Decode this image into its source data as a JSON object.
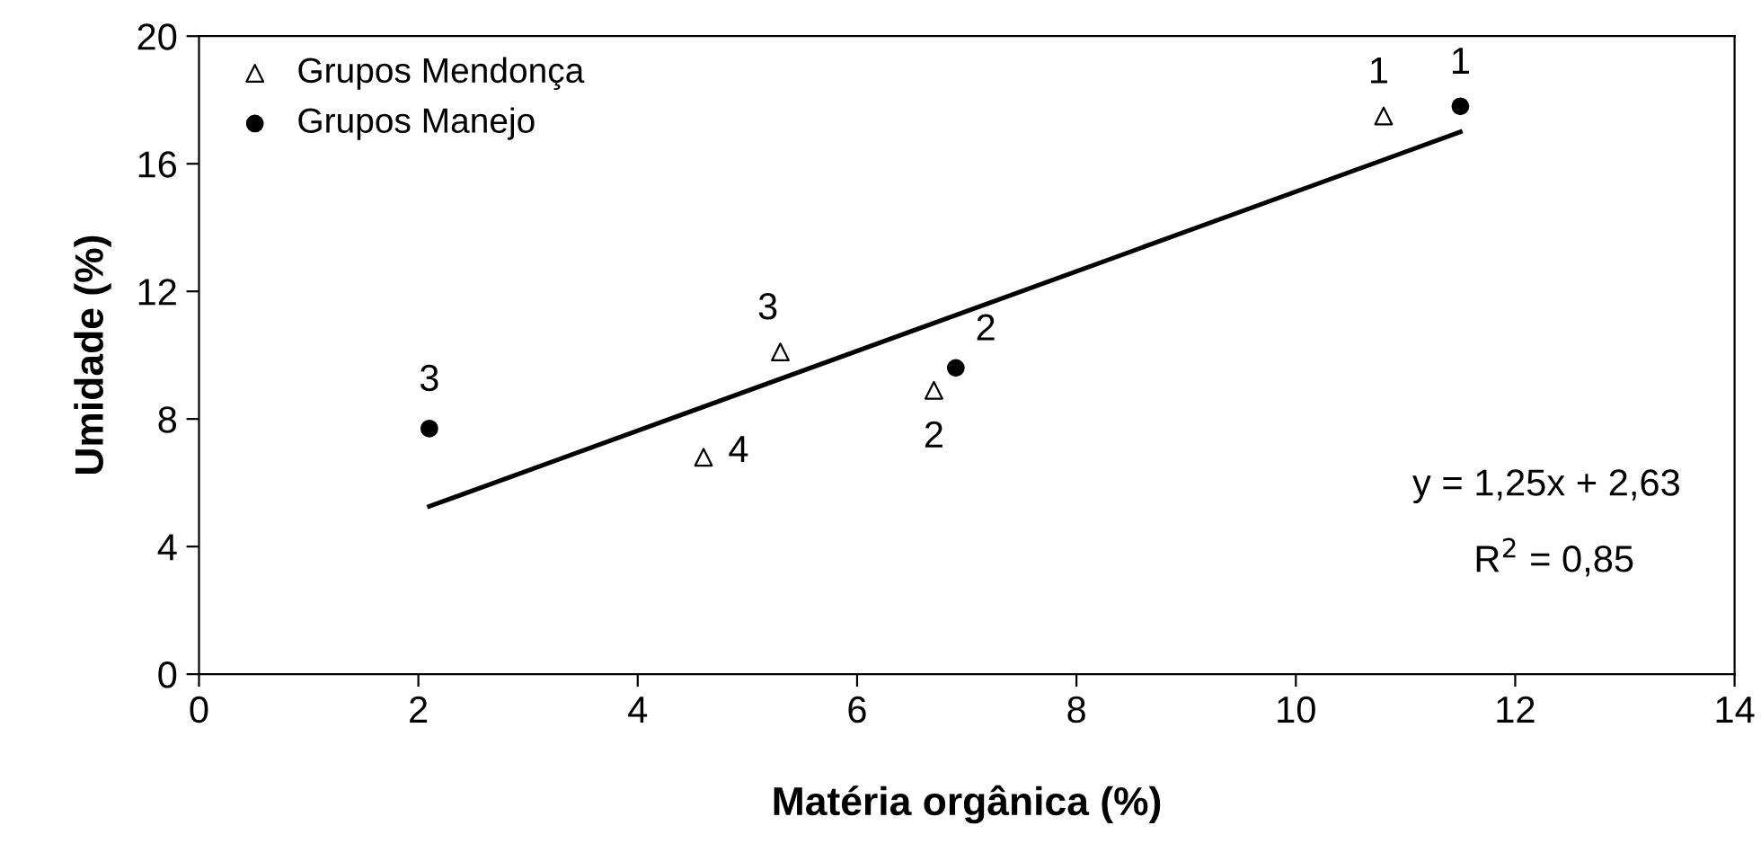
{
  "chart_data": {
    "type": "scatter",
    "xlabel": "Matéria orgânica (%)",
    "ylabel": "Umidade (%)",
    "xlim": [
      0,
      14
    ],
    "xticks": [
      0,
      2,
      4,
      6,
      8,
      10,
      12,
      14
    ],
    "ylim": [
      0,
      20
    ],
    "yticks": [
      0,
      4,
      8,
      12,
      16,
      20
    ],
    "grid": false,
    "legend": "top left",
    "series": [
      {
        "name": "Grupos Mendonça",
        "color": "#000000",
        "marker": "triangle",
        "x": [
          10.8,
          6.7,
          5.3,
          4.6
        ],
        "values": [
          17.5,
          8.9,
          10.1,
          6.8
        ]
      },
      {
        "name": "Grupos Manejo",
        "color": "#000000",
        "marker": "circle",
        "x": [
          11.5,
          6.9,
          2.1
        ],
        "values": [
          17.8,
          9.6,
          7.7
        ]
      },
      {
        "type": "line",
        "color": "#000000",
        "marker": "none",
        "line_style": "solid",
        "x": [
          2.1,
          11.5
        ],
        "values": [
          5.26,
          17.0
        ]
      }
    ],
    "annotations": [
      {
        "text": "1",
        "x": 10.8,
        "y": 17.5
      },
      {
        "text": "2",
        "x": 6.7,
        "y": 8.9
      },
      {
        "text": "3",
        "x": 5.3,
        "y": 10.1
      },
      {
        "text": "4",
        "x": 4.6,
        "y": 6.8
      },
      {
        "text": "1",
        "x": 11.5,
        "y": 17.8
      },
      {
        "text": "2",
        "x": 6.9,
        "y": 9.6
      },
      {
        "text": "3",
        "x": 2.1,
        "y": 7.7
      },
      "y = 1,25x + 2,63",
      "R$^{2}$ = 0,85"
    ]
  }
}
